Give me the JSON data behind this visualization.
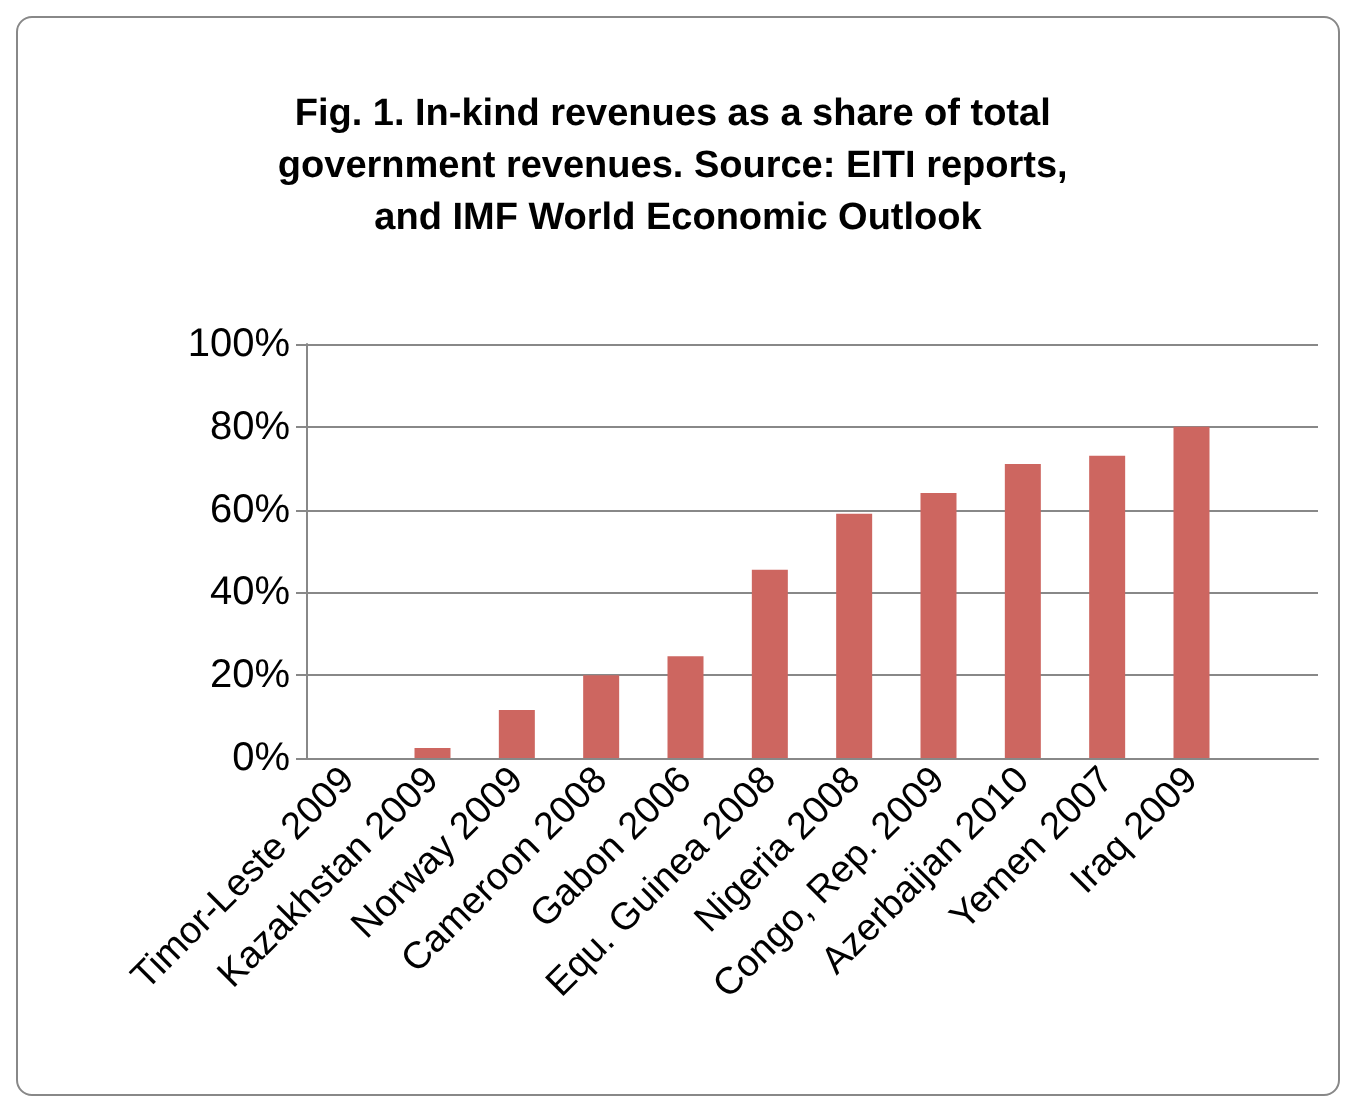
{
  "chart_data": {
    "type": "bar",
    "title": "Fig. 1. In-kind revenues as a share of total government revenues. Source: EITI reports, and IMF World Economic Outlook",
    "categories": [
      "Timor-Leste 2009",
      "Kazakhstan 2009",
      "Norway 2009",
      "Cameroon 2008",
      "Gabon 2006",
      "Equ. Guinea 2008",
      "Nigeria 2008",
      "Congo, Rep. 2009",
      "Azerbaijan 2010",
      "Yemen 2007",
      "Iraq 2009",
      null
    ],
    "values": [
      0,
      2.4,
      11.6,
      20,
      24.6,
      45.5,
      59,
      64,
      71,
      73,
      80,
      null
    ],
    "color": "#cd6660",
    "ylim": [
      0,
      100
    ],
    "yticks": [
      {
        "value": 0,
        "label": "0%"
      },
      {
        "value": 20,
        "label": "20%"
      },
      {
        "value": 40,
        "label": "40%"
      },
      {
        "value": 60,
        "label": "60%"
      },
      {
        "value": 80,
        "label": "80%"
      },
      {
        "value": 100,
        "label": "100%"
      }
    ],
    "grid": "y"
  }
}
